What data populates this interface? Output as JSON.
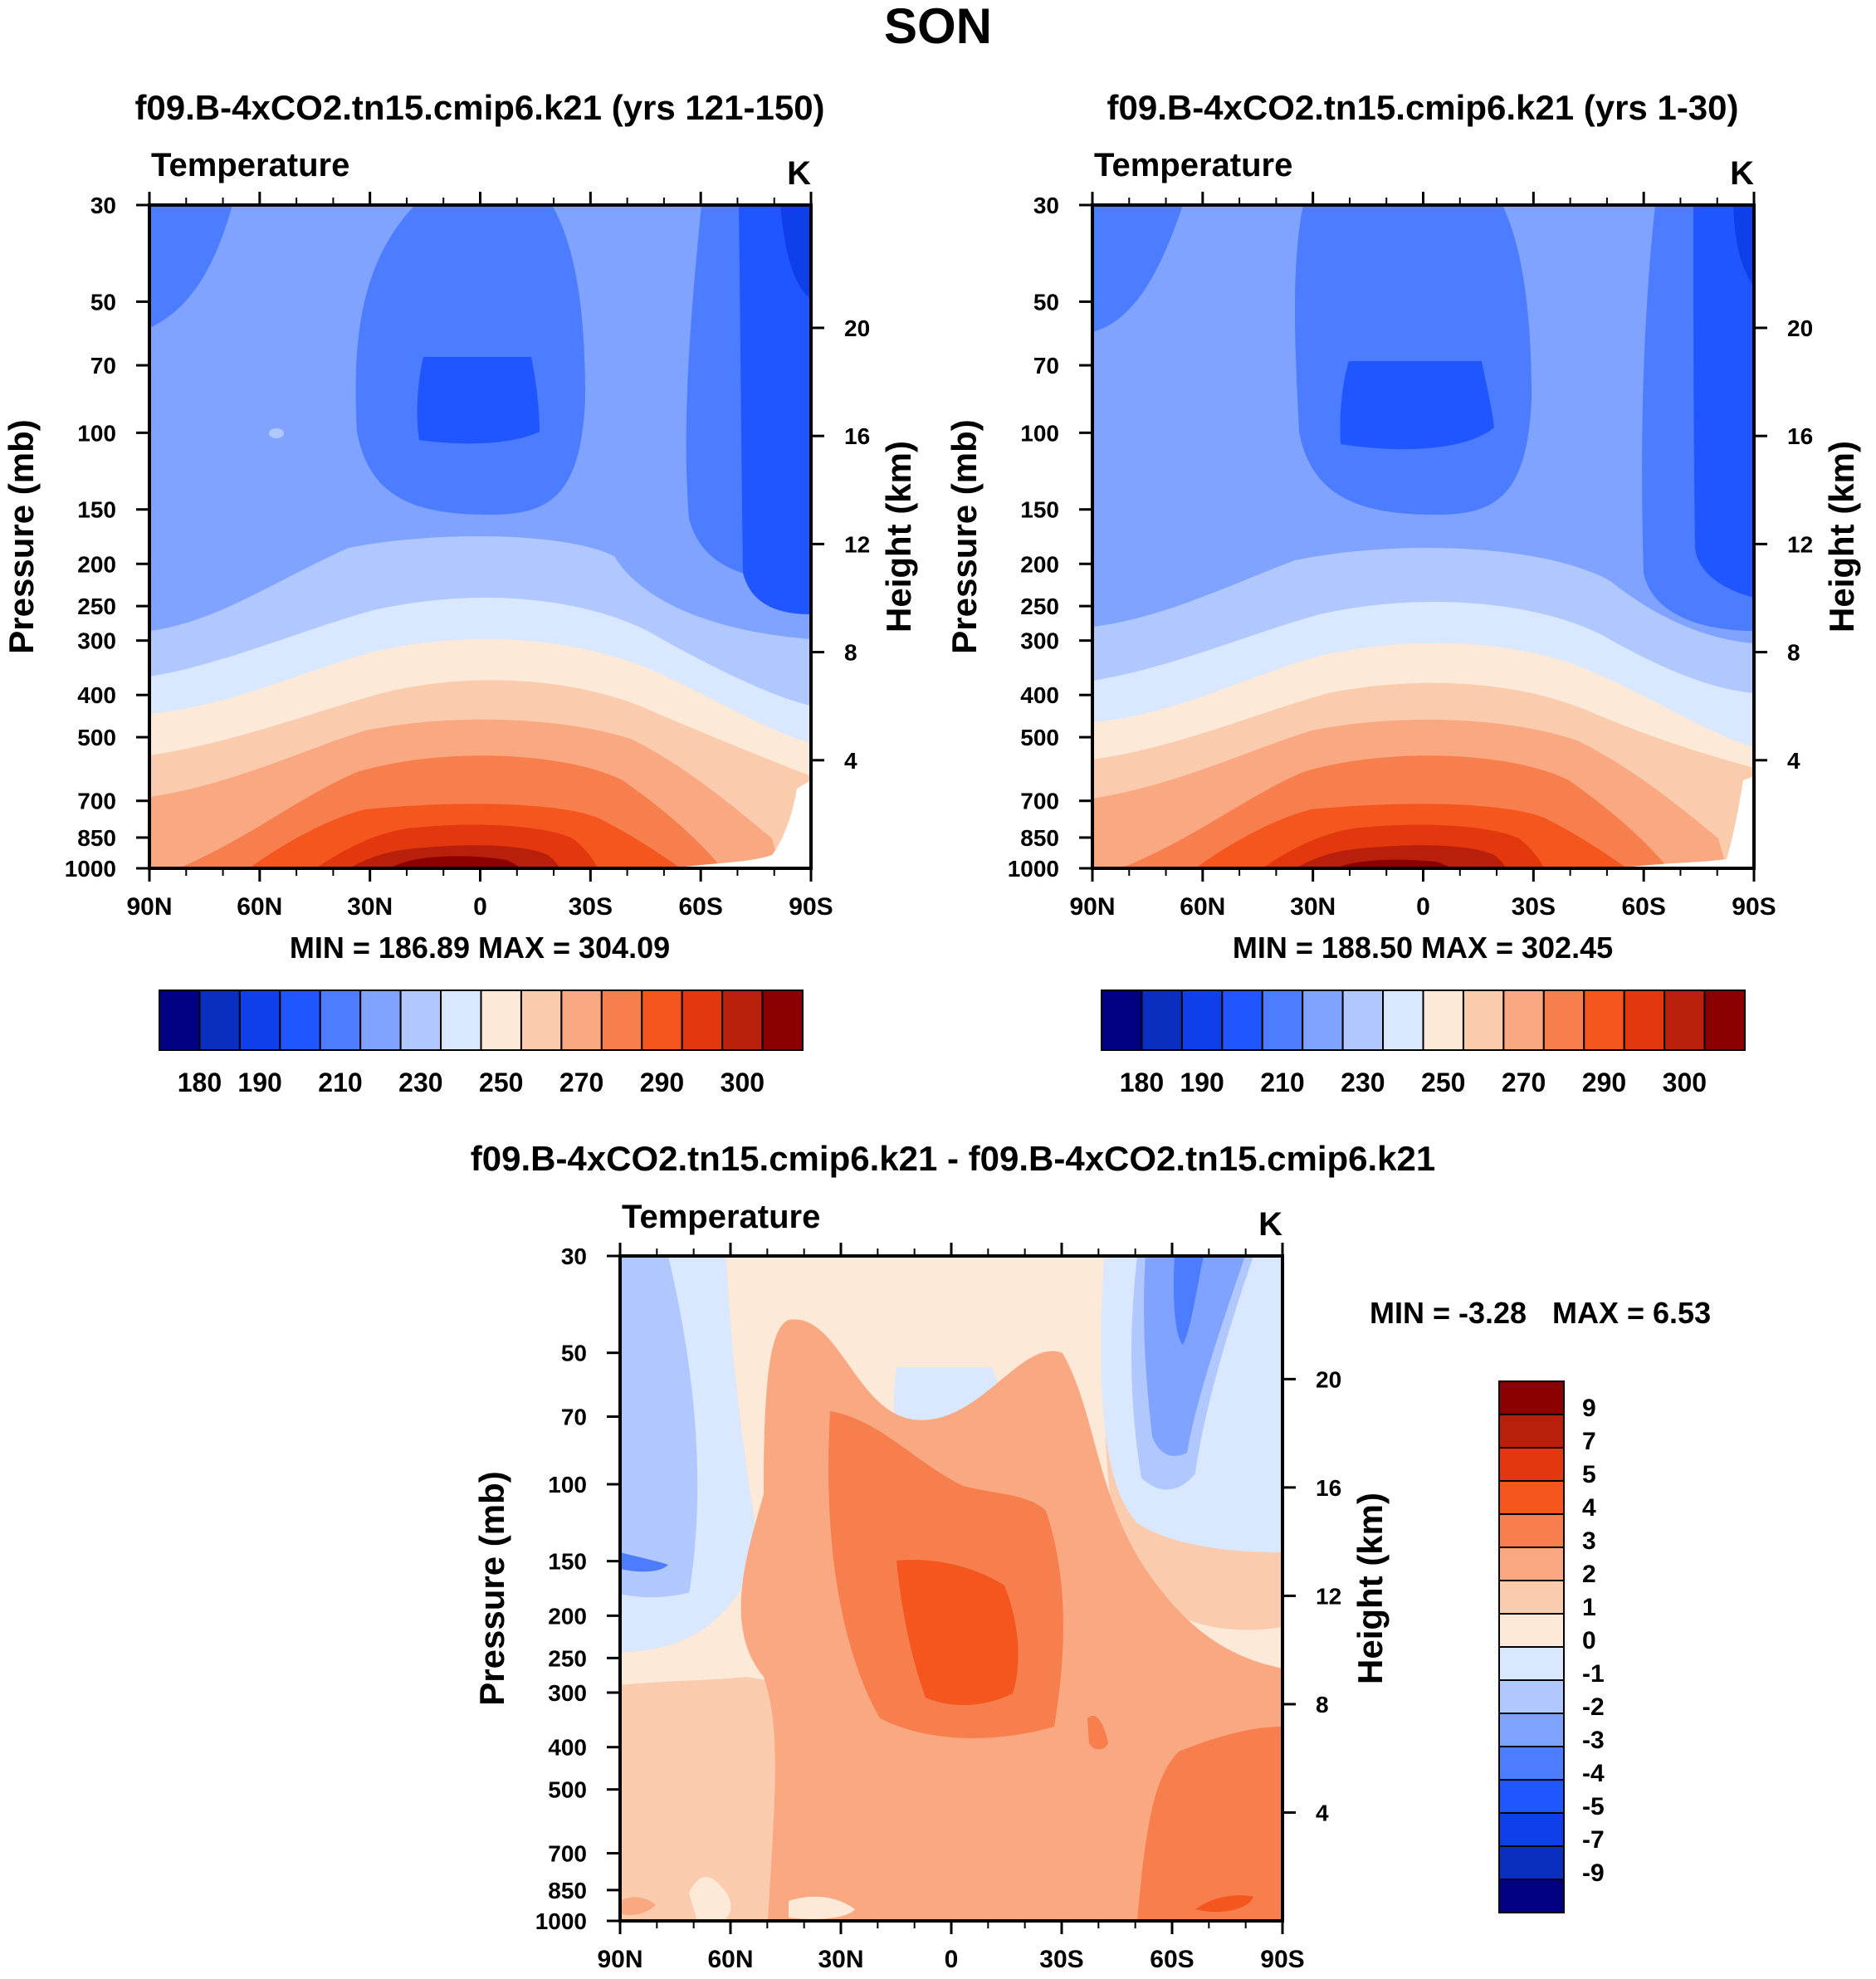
{
  "figure": {
    "title": "SON"
  },
  "colors": {
    "abs": [
      "#000080",
      "#0a2fc0",
      "#0f3fe8",
      "#1f56ff",
      "#4c7cff",
      "#7fa3ff",
      "#b1c8ff",
      "#d9e8ff",
      "#fde9d7",
      "#fbcbae",
      "#f9a882",
      "#f77e4d",
      "#f5561e",
      "#e3380d",
      "#b91f0a",
      "#8b0000"
    ],
    "diff": [
      "#000080",
      "#0a2fc0",
      "#0f3fe8",
      "#1f56ff",
      "#4c7cff",
      "#7fa3ff",
      "#b1c8ff",
      "#d9e8ff",
      "#fde9d7",
      "#fbcbae",
      "#f9a882",
      "#f77e4d",
      "#f5561e",
      "#e3380d",
      "#b91f0a",
      "#8b0000"
    ]
  },
  "axes": {
    "xlabels": [
      "90N",
      "60N",
      "30N",
      "0",
      "30S",
      "60S",
      "90S"
    ],
    "pressure_labels": [
      "30",
      "50",
      "70",
      "100",
      "150",
      "200",
      "250",
      "300",
      "400",
      "500",
      "700",
      "850",
      "1000"
    ],
    "height_labels": [
      "20",
      "16",
      "12",
      "8",
      "4"
    ],
    "ylabel_left": "Pressure (mb)",
    "ylabel_right": "Height (km)"
  },
  "chart_data": [
    {
      "type": "heatmap",
      "id": "test",
      "title": "f09.B-4xCO2.tn15.cmip6.k21 (yrs 121-150)",
      "left_string": "Temperature",
      "right_string": "K",
      "x": [
        "90N",
        "60N",
        "30N",
        "0",
        "30S",
        "60S",
        "90S"
      ],
      "y_pressure": [
        30,
        50,
        70,
        100,
        150,
        200,
        250,
        300,
        400,
        500,
        700,
        850,
        1000
      ],
      "y_height_km": [
        20,
        16,
        12,
        8,
        4
      ],
      "stats": "MIN = 186.89  MAX = 304.09",
      "colorbar_labels": [
        "180",
        "190",
        "210",
        "230",
        "250",
        "270",
        "290",
        "300"
      ]
    },
    {
      "type": "heatmap",
      "id": "control",
      "title": "f09.B-4xCO2.tn15.cmip6.k21 (yrs 1-30)",
      "left_string": "Temperature",
      "right_string": "K",
      "x": [
        "90N",
        "60N",
        "30N",
        "0",
        "30S",
        "60S",
        "90S"
      ],
      "y_pressure": [
        30,
        50,
        70,
        100,
        150,
        200,
        250,
        300,
        400,
        500,
        700,
        850,
        1000
      ],
      "y_height_km": [
        20,
        16,
        12,
        8,
        4
      ],
      "stats": "MIN = 188.50  MAX = 302.45",
      "colorbar_labels": [
        "180",
        "190",
        "210",
        "230",
        "250",
        "270",
        "290",
        "300"
      ]
    },
    {
      "type": "heatmap",
      "id": "difference",
      "title": "f09.B-4xCO2.tn15.cmip6.k21 - f09.B-4xCO2.tn15.cmip6.k21",
      "left_string": "Temperature",
      "right_string": "K",
      "x": [
        "90N",
        "60N",
        "30N",
        "0",
        "30S",
        "60S",
        "90S"
      ],
      "y_pressure": [
        30,
        50,
        70,
        100,
        150,
        200,
        250,
        300,
        400,
        500,
        700,
        850,
        1000
      ],
      "y_height_km": [
        20,
        16,
        12,
        8,
        4
      ],
      "stats_min": "MIN =  -3.28",
      "stats_max": "MAX =   6.53",
      "colorbar_labels": [
        "9",
        "7",
        "5",
        "4",
        "3",
        "2",
        "1",
        "0",
        "-1",
        "-2",
        "-3",
        "-4",
        "-5",
        "-7",
        "-9"
      ]
    }
  ]
}
